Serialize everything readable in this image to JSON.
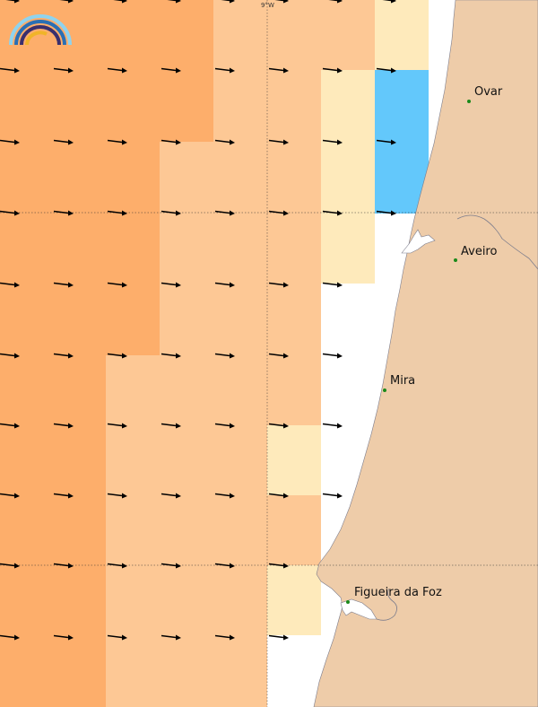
{
  "map": {
    "gridline_label": "9°W",
    "colors": {
      "sea_dark": "#fdae6b",
      "sea_medium": "#fdc895",
      "sea_light": "#feeabb",
      "sea_blue": "#63c8fb",
      "land": "#eecca9",
      "coast_line": "#7d7d8c",
      "city_dot": "#1a8a1a",
      "arrow": "#000000"
    },
    "cities": [
      {
        "name": "Ovar"
      },
      {
        "name": "Aveiro"
      },
      {
        "name": "Mira"
      },
      {
        "name": "Figueira da Foz"
      }
    ],
    "logo_icon": "rainbow-arc-logo"
  }
}
